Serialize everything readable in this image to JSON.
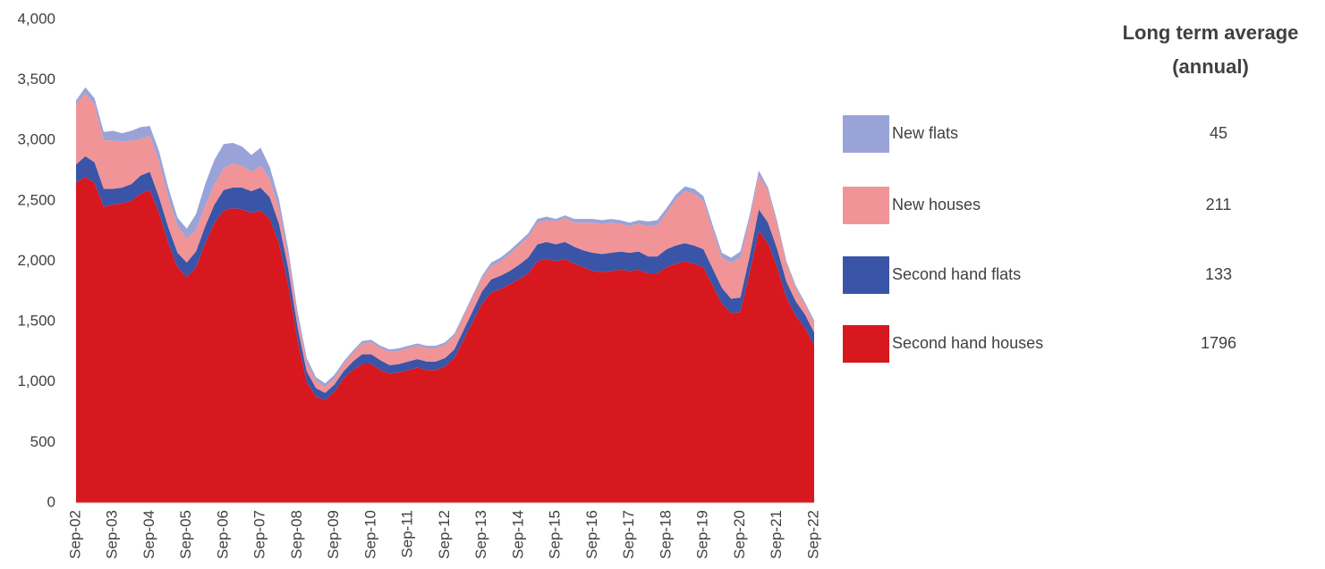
{
  "chart_data": {
    "type": "stacked-area",
    "categories": [
      "Sep-02",
      null,
      null,
      null,
      "Sep-03",
      null,
      null,
      null,
      "Sep-04",
      null,
      null,
      null,
      "Sep-05",
      null,
      null,
      null,
      "Sep-06",
      null,
      null,
      null,
      "Sep-07",
      null,
      null,
      null,
      "Sep-08",
      null,
      null,
      null,
      "Sep-09",
      null,
      null,
      null,
      "Sep-10",
      null,
      null,
      null,
      "Sep-11",
      null,
      null,
      null,
      "Sep-12",
      null,
      null,
      null,
      "Sep-13",
      null,
      null,
      null,
      "Sep-14",
      null,
      null,
      null,
      "Sep-15",
      null,
      null,
      null,
      "Sep-16",
      null,
      null,
      null,
      "Sep-17",
      null,
      null,
      null,
      "Sep-18",
      null,
      null,
      null,
      "Sep-19",
      null,
      null,
      null,
      "Sep-20",
      null,
      null,
      null,
      "Sep-21",
      null,
      null,
      null,
      "Sep-22"
    ],
    "series": [
      {
        "name": "Second hand houses",
        "color": "#d7181e",
        "average": 1796,
        "values": [
          2650,
          2700,
          2650,
          2450,
          2470,
          2480,
          2500,
          2560,
          2590,
          2400,
          2150,
          1950,
          1870,
          1950,
          2150,
          2320,
          2420,
          2440,
          2430,
          2400,
          2420,
          2350,
          2150,
          1800,
          1350,
          1000,
          880,
          850,
          920,
          1030,
          1100,
          1150,
          1150,
          1100,
          1070,
          1080,
          1100,
          1120,
          1100,
          1100,
          1130,
          1200,
          1350,
          1500,
          1650,
          1740,
          1770,
          1810,
          1850,
          1900,
          2000,
          2020,
          2000,
          2020,
          1980,
          1950,
          1920,
          1910,
          1920,
          1930,
          1920,
          1930,
          1900,
          1900,
          1950,
          1980,
          2000,
          1980,
          1950,
          1800,
          1650,
          1570,
          1580,
          1900,
          2250,
          2150,
          1950,
          1700,
          1550,
          1450,
          1300
        ]
      },
      {
        "name": "Second hand flats",
        "color": "#3a54a8",
        "average": 133,
        "values": [
          150,
          170,
          170,
          150,
          130,
          130,
          140,
          150,
          150,
          130,
          130,
          120,
          120,
          130,
          140,
          150,
          170,
          170,
          180,
          180,
          190,
          180,
          160,
          140,
          110,
          90,
          70,
          60,
          60,
          60,
          70,
          80,
          80,
          80,
          70,
          70,
          70,
          70,
          70,
          70,
          70,
          70,
          80,
          90,
          100,
          110,
          110,
          110,
          120,
          130,
          140,
          140,
          140,
          140,
          140,
          140,
          150,
          150,
          150,
          150,
          150,
          150,
          140,
          140,
          150,
          150,
          150,
          150,
          150,
          140,
          130,
          120,
          120,
          140,
          180,
          170,
          150,
          130,
          120,
          110,
          110
        ]
      },
      {
        "name": "New houses",
        "color": "#f09497",
        "average": 211,
        "values": [
          500,
          520,
          480,
          400,
          400,
          380,
          360,
          300,
          300,
          300,
          250,
          220,
          200,
          180,
          170,
          170,
          180,
          200,
          180,
          160,
          180,
          150,
          120,
          100,
          80,
          70,
          60,
          50,
          50,
          60,
          70,
          90,
          100,
          100,
          110,
          110,
          110,
          110,
          110,
          110,
          110,
          110,
          110,
          110,
          110,
          110,
          120,
          140,
          160,
          170,
          180,
          180,
          190,
          200,
          200,
          230,
          250,
          250,
          250,
          230,
          220,
          230,
          250,
          260,
          300,
          380,
          430,
          430,
          400,
          320,
          250,
          300,
          330,
          300,
          280,
          260,
          200,
          150,
          110,
          80,
          80
        ]
      },
      {
        "name": "New flats",
        "color": "#99a3d8",
        "average": 45,
        "values": [
          30,
          50,
          50,
          70,
          80,
          70,
          80,
          100,
          80,
          80,
          80,
          70,
          80,
          130,
          180,
          200,
          200,
          170,
          160,
          140,
          150,
          100,
          80,
          60,
          50,
          40,
          30,
          30,
          30,
          20,
          20,
          20,
          20,
          20,
          20,
          20,
          20,
          20,
          20,
          20,
          20,
          20,
          20,
          20,
          20,
          30,
          30,
          30,
          30,
          30,
          30,
          30,
          20,
          20,
          30,
          30,
          30,
          30,
          30,
          30,
          30,
          30,
          40,
          40,
          40,
          40,
          40,
          40,
          40,
          40,
          40,
          40,
          50,
          40,
          40,
          30,
          30,
          20,
          20,
          20,
          20
        ]
      }
    ],
    "legend_title": "Long term average (annual)",
    "ylim": [
      0,
      4000
    ],
    "yticks": [
      0,
      500,
      {
        "value": 1000,
        "label": "1,000"
      },
      {
        "value": 1500,
        "label": "1,500"
      },
      {
        "value": 2000,
        "label": "2,000"
      },
      {
        "value": 2500,
        "label": "2,500"
      },
      {
        "value": 3000,
        "label": "3,000"
      },
      {
        "value": 3500,
        "label": "3,500"
      },
      {
        "value": 4000,
        "label": "4,000"
      }
    ],
    "grid": false
  }
}
